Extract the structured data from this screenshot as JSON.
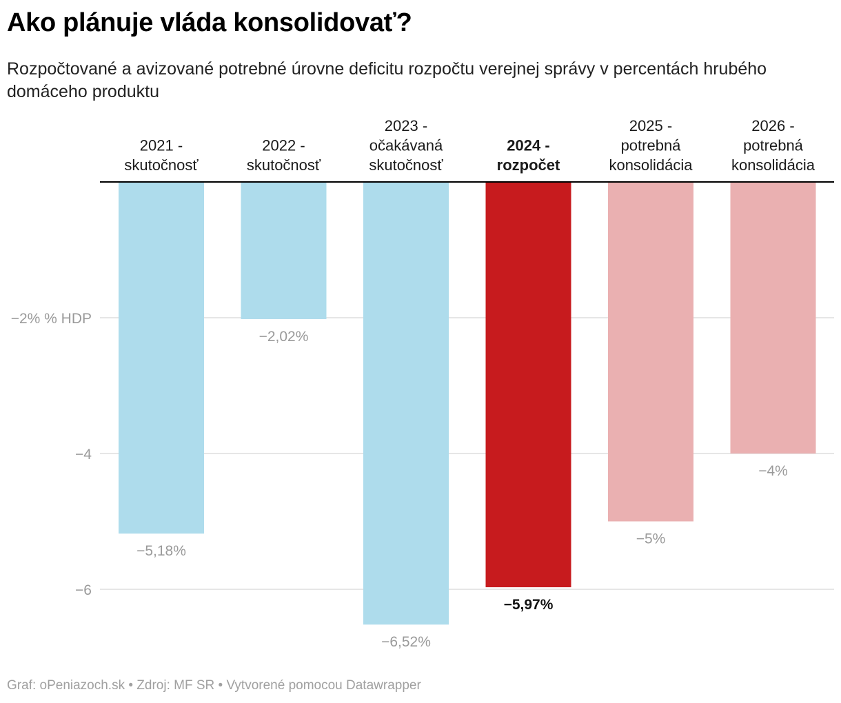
{
  "title": "Ako plánuje vláda konsolidovať?",
  "subtitle": "Rozpočtované a avizované potrebné úrovne deficitu rozpočtu verejnej správy v percentách hrubého domáceho produktu",
  "footer": "Graf: oPeniazoch.sk • Zdroj: MF SR • Vytvorené pomocou Datawrapper",
  "colors": {
    "actual": "#aedcec",
    "budget": "#c71b1e",
    "planned": "#eab0b1",
    "grid": "#dddddd",
    "axis": "#000000",
    "muted": "#9a9a9a"
  },
  "chart_data": {
    "type": "bar",
    "title": "Ako plánuje vláda konsolidovať?",
    "ylabel": "% HDP",
    "ylim": [
      -7,
      0
    ],
    "yticks": [
      {
        "value": -2,
        "label": "−2% % HDP"
      },
      {
        "value": -4,
        "label": "−4"
      },
      {
        "value": -6,
        "label": "−6"
      }
    ],
    "categories": [
      [
        "2021 -",
        "skutočnosť"
      ],
      [
        "2022 -",
        "skutočnosť"
      ],
      [
        "2023 -",
        "očakávaná",
        "skutočnosť"
      ],
      [
        "2024 -",
        "rozpočet"
      ],
      [
        "2025 -",
        "potrebná",
        "konsolidácia"
      ],
      [
        "2026 -",
        "potrebná",
        "konsolidácia"
      ]
    ],
    "values": [
      -5.18,
      -2.02,
      -6.52,
      -5.97,
      -5,
      -4
    ],
    "value_labels": [
      "−5,18%",
      "−2,02%",
      "−6,52%",
      "−5,97%",
      "−5%",
      "−4%"
    ],
    "groups": [
      "actual",
      "actual",
      "actual",
      "budget",
      "planned",
      "planned"
    ],
    "highlight_index": 3
  }
}
